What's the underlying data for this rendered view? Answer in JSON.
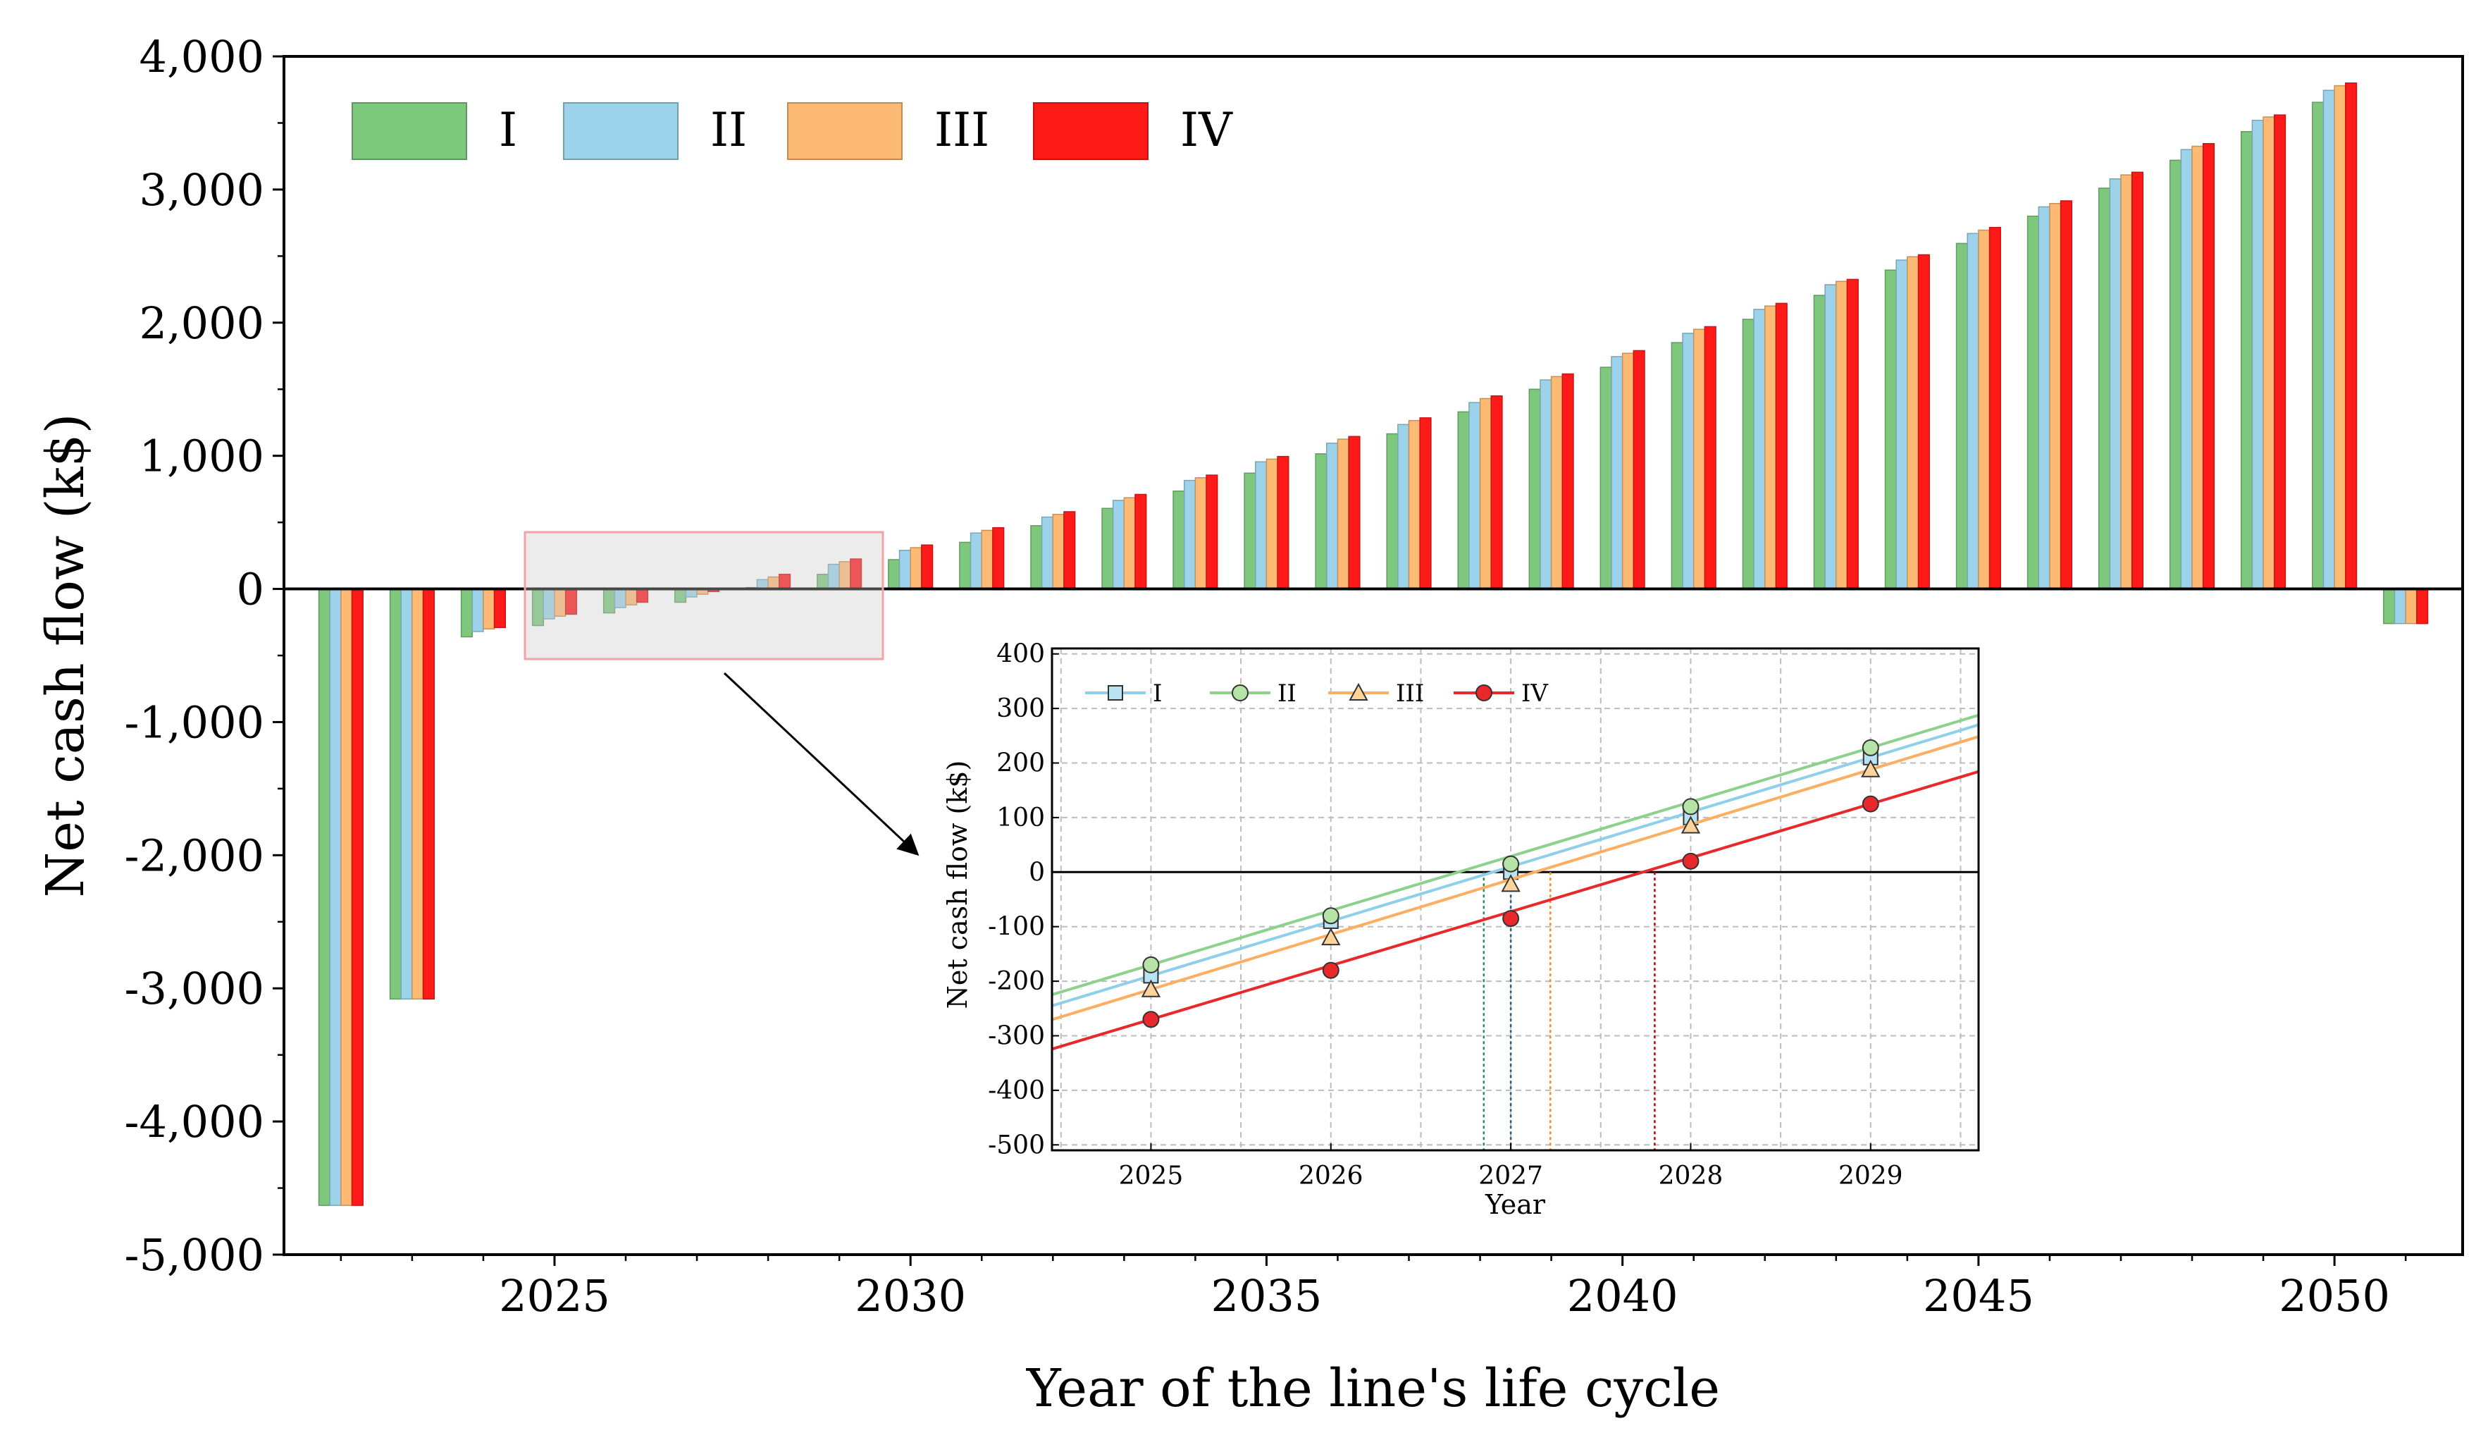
{
  "chart_data": [
    {
      "type": "bar",
      "xlabel": "Year of the line's life cycle",
      "ylabel": "Net cash flow (k$)",
      "ylim": [
        -5000,
        4000
      ],
      "yticks": [
        -5000,
        -4000,
        -3000,
        -2000,
        -1000,
        0,
        1000,
        2000,
        3000,
        4000
      ],
      "ytick_labels": [
        "-5,000",
        "-4,000",
        "-3,000",
        "-2,000",
        "-1,000",
        "0",
        "1,000",
        "2,000",
        "3,000",
        "4,000"
      ],
      "xlim": [
        2021.2,
        2051.8
      ],
      "xticks": [
        2025,
        2030,
        2035,
        2040,
        2045,
        2050
      ],
      "xtick_labels": [
        "2025",
        "2030",
        "2035",
        "2040",
        "2045",
        "2050"
      ],
      "x": [
        2022,
        2023,
        2024,
        2025,
        2026,
        2027,
        2028,
        2029,
        2030,
        2031,
        2032,
        2033,
        2034,
        2035,
        2036,
        2037,
        2038,
        2039,
        2040,
        2041,
        2042,
        2043,
        2044,
        2045,
        2046,
        2047,
        2048,
        2049,
        2050,
        2051
      ],
      "legend_position": "top-left",
      "series": [
        {
          "name": "I",
          "color": "#7DC87D",
          "values": [
            -4630,
            -3080,
            -360,
            -275,
            -180,
            -100,
            10,
            110,
            220,
            350,
            475,
            605,
            735,
            870,
            1015,
            1165,
            1330,
            1500,
            1665,
            1850,
            2025,
            2205,
            2395,
            2595,
            2800,
            3010,
            3220,
            3435,
            3655,
            -260
          ]
        },
        {
          "name": "II",
          "color": "#9DD3EA",
          "values": [
            -4630,
            -3080,
            -320,
            -225,
            -140,
            -60,
            70,
            185,
            290,
            420,
            540,
            665,
            815,
            955,
            1095,
            1235,
            1400,
            1570,
            1745,
            1920,
            2100,
            2285,
            2470,
            2670,
            2870,
            3080,
            3300,
            3520,
            3745,
            -260
          ]
        },
        {
          "name": "III",
          "color": "#FDBA74",
          "values": [
            -4630,
            -3080,
            -300,
            -205,
            -120,
            -40,
            90,
            205,
            310,
            440,
            560,
            685,
            835,
            975,
            1125,
            1265,
            1430,
            1595,
            1770,
            1950,
            2125,
            2310,
            2495,
            2695,
            2895,
            3110,
            3325,
            3545,
            3780,
            -260
          ]
        },
        {
          "name": "IV",
          "color": "#FF1A1A",
          "values": [
            -4630,
            -3080,
            -290,
            -190,
            -100,
            -20,
            110,
            225,
            330,
            460,
            580,
            710,
            855,
            995,
            1145,
            1285,
            1450,
            1615,
            1790,
            1970,
            2145,
            2325,
            2510,
            2715,
            2915,
            3130,
            3345,
            3560,
            3800,
            -260
          ]
        }
      ]
    },
    {
      "type": "line",
      "xlabel": "Year",
      "ylabel": "Net cash flow (k$)",
      "xlim": [
        2024.45,
        2029.6
      ],
      "ylim": [
        -510,
        410
      ],
      "xticks": [
        2025,
        2026,
        2027,
        2028,
        2029
      ],
      "xtick_labels": [
        "2025",
        "2026",
        "2027",
        "2028",
        "2029"
      ],
      "yticks": [
        -500,
        -400,
        -300,
        -200,
        -100,
        0,
        100,
        200,
        300,
        400
      ],
      "ytick_labels": [
        "-500",
        "-400",
        "-300",
        "-200",
        "-100",
        "0",
        "100",
        "200",
        "300",
        "400"
      ],
      "legend_position": "top-left",
      "series": [
        {
          "name": "I",
          "color": "#8ECFEA",
          "marker": "square",
          "x": [
            2025,
            2026,
            2027,
            2028,
            2029
          ],
          "values": [
            -190,
            -90,
            0,
            100,
            210
          ]
        },
        {
          "name": "II",
          "color": "#8CD18C",
          "marker": "circle",
          "x": [
            2025,
            2026,
            2027,
            2028,
            2029
          ],
          "values": [
            -170,
            -80,
            15,
            120,
            228
          ]
        },
        {
          "name": "III",
          "color": "#FDAE61",
          "marker": "triangle",
          "x": [
            2025,
            2026,
            2027,
            2028,
            2029
          ],
          "values": [
            -215,
            -120,
            -22,
            85,
            188
          ]
        },
        {
          "name": "IV",
          "color": "#E8282B",
          "marker": "circle",
          "x": [
            2025,
            2026,
            2027,
            2028,
            2029
          ],
          "values": [
            -270,
            -180,
            -85,
            20,
            125
          ]
        }
      ],
      "crossings": [
        {
          "series": "II",
          "x": 2026.85,
          "color": "#2E8B57"
        },
        {
          "series": "I",
          "x": 2027.0,
          "color": "#1F5F8B"
        },
        {
          "series": "III",
          "x": 2027.22,
          "color": "#FF8C1A"
        },
        {
          "series": "IV",
          "x": 2027.8,
          "color": "#D00000"
        }
      ]
    }
  ]
}
